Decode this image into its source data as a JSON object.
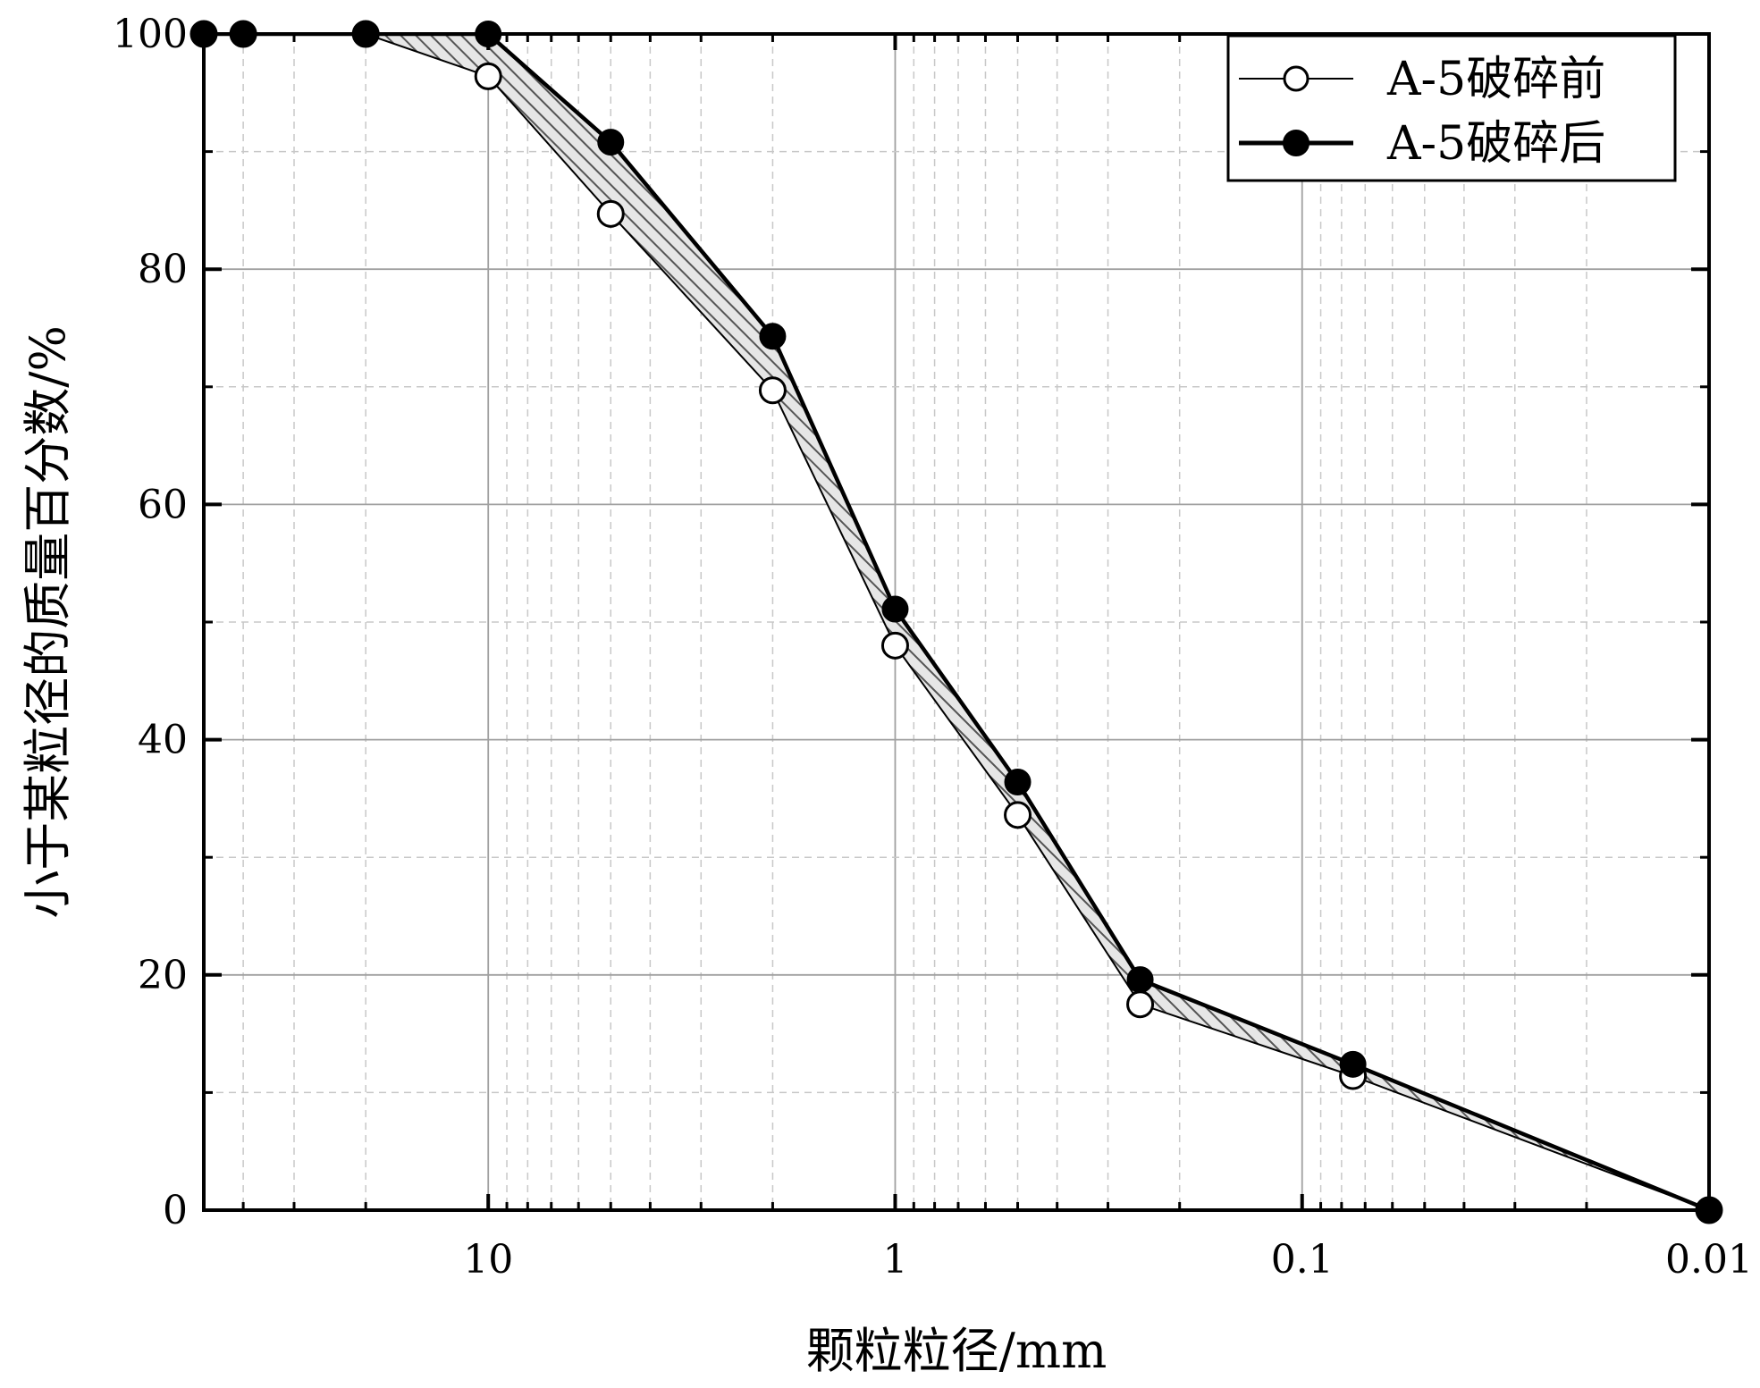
{
  "chart_data": {
    "type": "line",
    "title": "",
    "xlabel": "颗粒粒径/mm",
    "ylabel": "小于某粒径的质量百分数/%",
    "x_scale": "log",
    "x_reversed": true,
    "xlim": [
      50,
      0.01
    ],
    "ylim": [
      0,
      100
    ],
    "x_ticks": [
      10,
      1,
      0.1,
      0.01
    ],
    "x_tick_labels": [
      "10",
      "1",
      "0.1",
      "0.01"
    ],
    "y_ticks": [
      0,
      20,
      40,
      60,
      80,
      100
    ],
    "y_tick_labels": [
      "0",
      "20",
      "40",
      "60",
      "80",
      "100"
    ],
    "grid": true,
    "legend_position": "top-right",
    "fill_between_series": true,
    "series": [
      {
        "name": "A-5破碎前",
        "marker": "open-circle",
        "color": "#000000",
        "x": [
          50,
          40,
          20,
          10,
          5,
          2,
          1,
          0.5,
          0.25,
          0.075,
          0.01
        ],
        "y": [
          100,
          100,
          100,
          96.4,
          84.7,
          69.7,
          48.0,
          33.6,
          17.5,
          11.4,
          0
        ]
      },
      {
        "name": "A-5破碎后",
        "marker": "filled-circle",
        "color": "#000000",
        "x": [
          50,
          40,
          20,
          10,
          5,
          2,
          1,
          0.5,
          0.25,
          0.075,
          0.01
        ],
        "y": [
          100,
          100,
          100,
          100,
          90.8,
          74.3,
          51.1,
          36.4,
          19.6,
          12.4,
          0
        ]
      }
    ]
  }
}
